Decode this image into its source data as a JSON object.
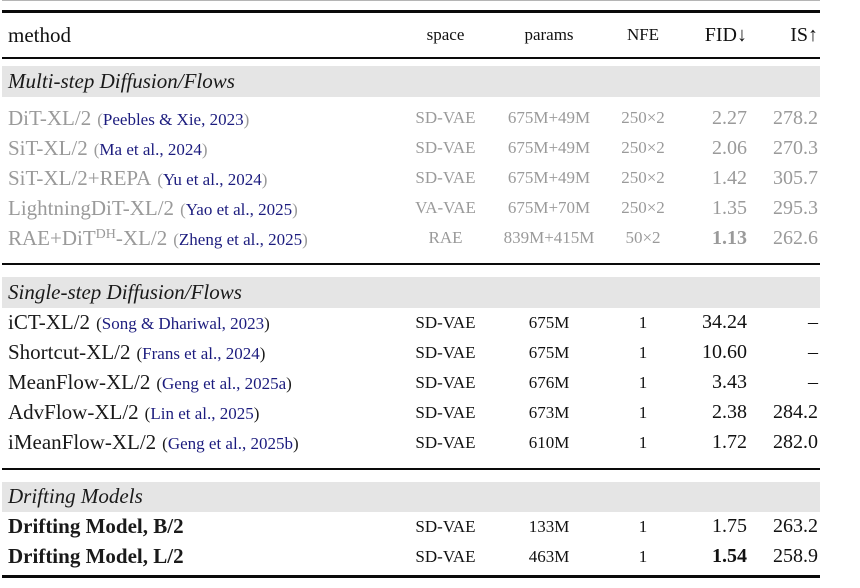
{
  "glyphs": {
    "open_paren": "(",
    "close_paren": ")"
  },
  "colors": {
    "citation_navy": "#1c1c7e",
    "muted_gray": "#9a9a9a",
    "band_gray": "#e5e5e5",
    "rule_black": "#0a0a0a"
  },
  "header": {
    "method": "method",
    "space": "space",
    "params": "params",
    "nfe": "NFE",
    "fid": "FID↓",
    "is": "IS↑"
  },
  "sections": [
    {
      "title": "Multi-step Diffusion/Flows",
      "rows": [
        {
          "name": "DiT-XL/2",
          "cite": "Peebles & Xie, 2023",
          "space": "SD-VAE",
          "params": "675M+49M",
          "nfe": "250×2",
          "fid": "2.27",
          "is": "278.2"
        },
        {
          "name": "SiT-XL/2",
          "cite": "Ma et al., 2024",
          "space": "SD-VAE",
          "params": "675M+49M",
          "nfe": "250×2",
          "fid": "2.06",
          "is": "270.3"
        },
        {
          "name": "SiT-XL/2+REPA",
          "cite": "Yu et al., 2024",
          "space": "SD-VAE",
          "params": "675M+49M",
          "nfe": "250×2",
          "fid": "1.42",
          "is": "305.7"
        },
        {
          "name": "LightningDiT-XL/2",
          "cite": "Yao et al., 2025",
          "space": "VA-VAE",
          "params": "675M+70M",
          "nfe": "250×2",
          "fid": "1.35",
          "is": "295.3"
        },
        {
          "name": "RAE+DiT",
          "sup": "DH",
          "tail": "-XL/2",
          "cite": "Zheng et al., 2025",
          "space": "RAE",
          "params": "839M+415M",
          "nfe": "50×2",
          "fid": "1.13",
          "is": "262.6"
        }
      ]
    },
    {
      "title": "Single-step Diffusion/Flows",
      "rows": [
        {
          "name": "iCT-XL/2",
          "cite": "Song & Dhariwal, 2023",
          "space": "SD-VAE",
          "params": "675M",
          "nfe": "1",
          "fid": "34.24",
          "is": "–"
        },
        {
          "name": "Shortcut-XL/2",
          "cite": "Frans et al., 2024",
          "space": "SD-VAE",
          "params": "675M",
          "nfe": "1",
          "fid": "10.60",
          "is": "–"
        },
        {
          "name": "MeanFlow-XL/2",
          "cite": "Geng et al., 2025a",
          "space": "SD-VAE",
          "params": "676M",
          "nfe": "1",
          "fid": "3.43",
          "is": "–"
        },
        {
          "name": "AdvFlow-XL/2",
          "cite": "Lin et al., 2025",
          "space": "SD-VAE",
          "params": "673M",
          "nfe": "1",
          "fid": "2.38",
          "is": "284.2"
        },
        {
          "name": "iMeanFlow-XL/2",
          "cite": "Geng et al., 2025b",
          "space": "SD-VAE",
          "params": "610M",
          "nfe": "1",
          "fid": "1.72",
          "is": "282.0"
        }
      ]
    },
    {
      "title": "Drifting Models",
      "rows": [
        {
          "name": "Drifting Model, B/2",
          "space": "SD-VAE",
          "params": "133M",
          "nfe": "1",
          "fid": "1.75",
          "is": "263.2"
        },
        {
          "name": "Drifting Model, L/2",
          "space": "SD-VAE",
          "params": "463M",
          "nfe": "1",
          "fid": "1.54",
          "is": "258.9"
        }
      ]
    }
  ]
}
